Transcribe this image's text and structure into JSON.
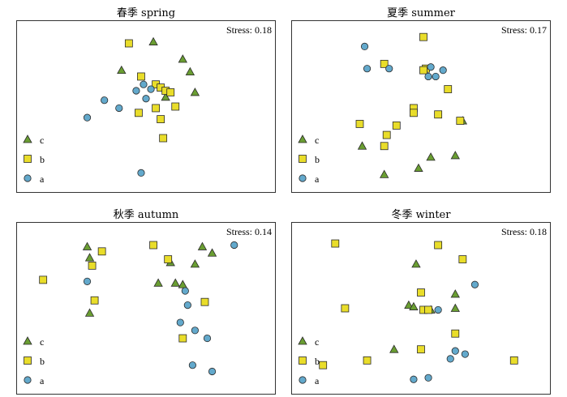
{
  "colors": {
    "c": "#6a9e32",
    "b": "#e9dd2a",
    "a": "#63a9cc",
    "stroke": "#2b2b2b"
  },
  "legend": [
    "c",
    "b",
    "a"
  ],
  "chart_data": [
    {
      "type": "scatter",
      "title": "春季 spring",
      "stress_label": "Stress:",
      "stress": "0.18",
      "x": {
        "lim": [
          0,
          100
        ]
      },
      "y": {
        "lim": [
          0,
          100
        ]
      },
      "points": [
        {
          "g": "c",
          "x": 53,
          "y": 91
        },
        {
          "g": "c",
          "x": 65,
          "y": 80
        },
        {
          "g": "c",
          "x": 40,
          "y": 73
        },
        {
          "g": "c",
          "x": 68,
          "y": 72
        },
        {
          "g": "c",
          "x": 58,
          "y": 56
        },
        {
          "g": "c",
          "x": 70,
          "y": 59
        },
        {
          "g": "b",
          "x": 43,
          "y": 90
        },
        {
          "g": "b",
          "x": 48,
          "y": 69
        },
        {
          "g": "b",
          "x": 54,
          "y": 64
        },
        {
          "g": "b",
          "x": 56,
          "y": 62
        },
        {
          "g": "b",
          "x": 58,
          "y": 60
        },
        {
          "g": "b",
          "x": 60,
          "y": 59
        },
        {
          "g": "b",
          "x": 54,
          "y": 49
        },
        {
          "g": "b",
          "x": 47,
          "y": 46
        },
        {
          "g": "b",
          "x": 62,
          "y": 50
        },
        {
          "g": "b",
          "x": 56,
          "y": 42
        },
        {
          "g": "b",
          "x": 57,
          "y": 30
        },
        {
          "g": "a",
          "x": 49,
          "y": 64
        },
        {
          "g": "a",
          "x": 46,
          "y": 60
        },
        {
          "g": "a",
          "x": 52,
          "y": 61
        },
        {
          "g": "a",
          "x": 50,
          "y": 55
        },
        {
          "g": "a",
          "x": 33,
          "y": 54
        },
        {
          "g": "a",
          "x": 39,
          "y": 49
        },
        {
          "g": "a",
          "x": 26,
          "y": 43
        },
        {
          "g": "a",
          "x": 48,
          "y": 8
        }
      ]
    },
    {
      "type": "scatter",
      "title": "夏季 summer",
      "stress_label": "Stress:",
      "stress": "0.17",
      "x": {
        "lim": [
          0,
          100
        ]
      },
      "y": {
        "lim": [
          0,
          100
        ]
      },
      "points": [
        {
          "g": "c",
          "x": 26,
          "y": 25
        },
        {
          "g": "c",
          "x": 35,
          "y": 7
        },
        {
          "g": "c",
          "x": 49,
          "y": 11
        },
        {
          "g": "c",
          "x": 54,
          "y": 18
        },
        {
          "g": "c",
          "x": 64,
          "y": 19
        },
        {
          "g": "c",
          "x": 67,
          "y": 41
        },
        {
          "g": "b",
          "x": 51,
          "y": 94
        },
        {
          "g": "b",
          "x": 35,
          "y": 77
        },
        {
          "g": "b",
          "x": 52,
          "y": 74
        },
        {
          "g": "b",
          "x": 51,
          "y": 73
        },
        {
          "g": "b",
          "x": 61,
          "y": 61
        },
        {
          "g": "b",
          "x": 47,
          "y": 49
        },
        {
          "g": "b",
          "x": 47,
          "y": 46
        },
        {
          "g": "b",
          "x": 57,
          "y": 45
        },
        {
          "g": "b",
          "x": 66,
          "y": 41
        },
        {
          "g": "b",
          "x": 25,
          "y": 39
        },
        {
          "g": "b",
          "x": 40,
          "y": 38
        },
        {
          "g": "b",
          "x": 36,
          "y": 32
        },
        {
          "g": "b",
          "x": 35,
          "y": 25
        },
        {
          "g": "a",
          "x": 27,
          "y": 88
        },
        {
          "g": "a",
          "x": 28,
          "y": 74
        },
        {
          "g": "a",
          "x": 37,
          "y": 74
        },
        {
          "g": "a",
          "x": 54,
          "y": 75
        },
        {
          "g": "a",
          "x": 59,
          "y": 73
        },
        {
          "g": "a",
          "x": 56,
          "y": 69
        },
        {
          "g": "a",
          "x": 53,
          "y": 69
        }
      ]
    },
    {
      "type": "scatter",
      "title": "秋季 autumn",
      "stress_label": "Stress:",
      "stress": "0.14",
      "x": {
        "lim": [
          0,
          100
        ]
      },
      "y": {
        "lim": [
          0,
          100
        ]
      },
      "points": [
        {
          "g": "c",
          "x": 26,
          "y": 89
        },
        {
          "g": "c",
          "x": 27,
          "y": 82
        },
        {
          "g": "c",
          "x": 60,
          "y": 79
        },
        {
          "g": "c",
          "x": 70,
          "y": 78
        },
        {
          "g": "c",
          "x": 65,
          "y": 65
        },
        {
          "g": "c",
          "x": 73,
          "y": 89
        },
        {
          "g": "c",
          "x": 77,
          "y": 85
        },
        {
          "g": "c",
          "x": 55,
          "y": 66
        },
        {
          "g": "c",
          "x": 62,
          "y": 66
        },
        {
          "g": "c",
          "x": 27,
          "y": 47
        },
        {
          "g": "b",
          "x": 32,
          "y": 86
        },
        {
          "g": "b",
          "x": 28,
          "y": 77
        },
        {
          "g": "b",
          "x": 53,
          "y": 90
        },
        {
          "g": "b",
          "x": 59,
          "y": 81
        },
        {
          "g": "b",
          "x": 8,
          "y": 68
        },
        {
          "g": "b",
          "x": 29,
          "y": 55
        },
        {
          "g": "b",
          "x": 74,
          "y": 54
        },
        {
          "g": "b",
          "x": 65,
          "y": 31
        },
        {
          "g": "a",
          "x": 26,
          "y": 67
        },
        {
          "g": "a",
          "x": 66,
          "y": 61
        },
        {
          "g": "a",
          "x": 67,
          "y": 52
        },
        {
          "g": "a",
          "x": 64,
          "y": 41
        },
        {
          "g": "a",
          "x": 70,
          "y": 36
        },
        {
          "g": "a",
          "x": 75,
          "y": 31
        },
        {
          "g": "a",
          "x": 69,
          "y": 14
        },
        {
          "g": "a",
          "x": 77,
          "y": 10
        },
        {
          "g": "a",
          "x": 86,
          "y": 90
        }
      ]
    },
    {
      "type": "scatter",
      "title": "冬季 winter",
      "stress_label": "Stress:",
      "stress": "0.18",
      "x": {
        "lim": [
          0,
          100
        ]
      },
      "y": {
        "lim": [
          0,
          100
        ]
      },
      "points": [
        {
          "g": "c",
          "x": 48,
          "y": 78
        },
        {
          "g": "c",
          "x": 64,
          "y": 59
        },
        {
          "g": "c",
          "x": 45,
          "y": 52
        },
        {
          "g": "c",
          "x": 47,
          "y": 51
        },
        {
          "g": "c",
          "x": 64,
          "y": 50
        },
        {
          "g": "c",
          "x": 54,
          "y": 49
        },
        {
          "g": "c",
          "x": 39,
          "y": 24
        },
        {
          "g": "b",
          "x": 15,
          "y": 91
        },
        {
          "g": "b",
          "x": 57,
          "y": 90
        },
        {
          "g": "b",
          "x": 67,
          "y": 81
        },
        {
          "g": "b",
          "x": 50,
          "y": 60
        },
        {
          "g": "b",
          "x": 19,
          "y": 50
        },
        {
          "g": "b",
          "x": 51,
          "y": 49
        },
        {
          "g": "b",
          "x": 53,
          "y": 49
        },
        {
          "g": "b",
          "x": 64,
          "y": 34
        },
        {
          "g": "b",
          "x": 50,
          "y": 24
        },
        {
          "g": "b",
          "x": 28,
          "y": 17
        },
        {
          "g": "b",
          "x": 10,
          "y": 14
        },
        {
          "g": "b",
          "x": 88,
          "y": 17
        },
        {
          "g": "a",
          "x": 57,
          "y": 49
        },
        {
          "g": "a",
          "x": 72,
          "y": 65
        },
        {
          "g": "a",
          "x": 64,
          "y": 23
        },
        {
          "g": "a",
          "x": 68,
          "y": 21
        },
        {
          "g": "a",
          "x": 62,
          "y": 18
        },
        {
          "g": "a",
          "x": 47,
          "y": 5
        },
        {
          "g": "a",
          "x": 53,
          "y": 6
        }
      ]
    }
  ]
}
